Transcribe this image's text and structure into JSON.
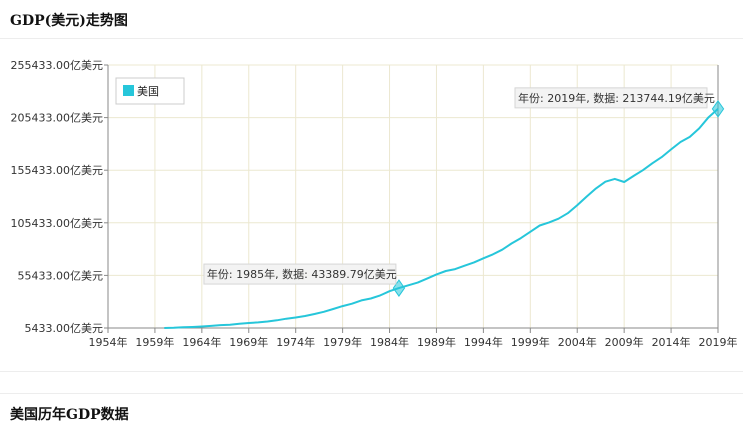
{
  "page": {
    "chart_title": "GDP(美元)走势图",
    "history_title": "美国历年GDP数据"
  },
  "colors": {
    "series": "#26c6da",
    "grid": "#ece8d0",
    "axis": "#8a8a8a"
  },
  "chart_data": {
    "type": "line",
    "title": "",
    "xlabel": "",
    "ylabel": "",
    "legend_position": "top-left",
    "grid": true,
    "xlim": [
      1954,
      2019
    ],
    "ylim": [
      5433,
      255433
    ],
    "y_ticks": [
      5433,
      55433,
      105433,
      155433,
      205433,
      255433
    ],
    "y_tick_labels": [
      "5433.00亿美元",
      "55433.00亿美元",
      "105433.00亿美元",
      "155433.00亿美元",
      "205433.00亿美元",
      "255433.00亿美元"
    ],
    "x_ticks": [
      1954,
      1959,
      1964,
      1969,
      1974,
      1979,
      1984,
      1989,
      1994,
      1999,
      2004,
      2009,
      2014,
      2019
    ],
    "x_tick_labels": [
      "1954年",
      "1959年",
      "1964年",
      "1969年",
      "1974年",
      "1979年",
      "1984年",
      "1989年",
      "1994年",
      "1999年",
      "2004年",
      "2009年",
      "2014年",
      "2019年"
    ],
    "series": [
      {
        "name": "美国",
        "color": "#26c6da",
        "x": [
          1960,
          1961,
          1962,
          1963,
          1964,
          1965,
          1966,
          1967,
          1968,
          1969,
          1970,
          1971,
          1972,
          1973,
          1974,
          1975,
          1976,
          1977,
          1978,
          1979,
          1980,
          1981,
          1982,
          1983,
          1984,
          1985,
          1986,
          1987,
          1988,
          1989,
          1990,
          1991,
          1992,
          1993,
          1994,
          1995,
          1996,
          1997,
          1998,
          1999,
          2000,
          2001,
          2002,
          2003,
          2004,
          2005,
          2006,
          2007,
          2008,
          2009,
          2010,
          2011,
          2012,
          2013,
          2014,
          2015,
          2016,
          2017,
          2018,
          2019
        ],
        "y": [
          5433,
          5633,
          6051,
          6386,
          6858,
          7437,
          8150,
          8617,
          9425,
          10199,
          10734,
          11650,
          12795,
          14256,
          15455,
          16849,
          18736,
          20813,
          23516,
          26275,
          28573,
          31679,
          33435,
          36386,
          40406,
          43390,
          46019,
          48550,
          52365,
          56416,
          59631,
          61468,
          64617,
          67769,
          71722,
          75399,
          79893,
          85778,
          90891,
          96859,
          102848,
          105818,
          109364,
          114582,
          122135,
          130369,
          138147,
          144519,
          147128,
          144187,
          149921,
          155426,
          161970,
          167848,
          175217,
          182193,
          187072,
          195194,
          205802,
          213744
        ]
      }
    ],
    "annotations": [
      {
        "x": 1985,
        "y": 43389.79,
        "text": "年份: 1985年, 数据: 43389.79亿美元"
      },
      {
        "x": 2019,
        "y": 213744.19,
        "text": "年份: 2019年, 数据: 213744.19亿美元"
      }
    ]
  }
}
